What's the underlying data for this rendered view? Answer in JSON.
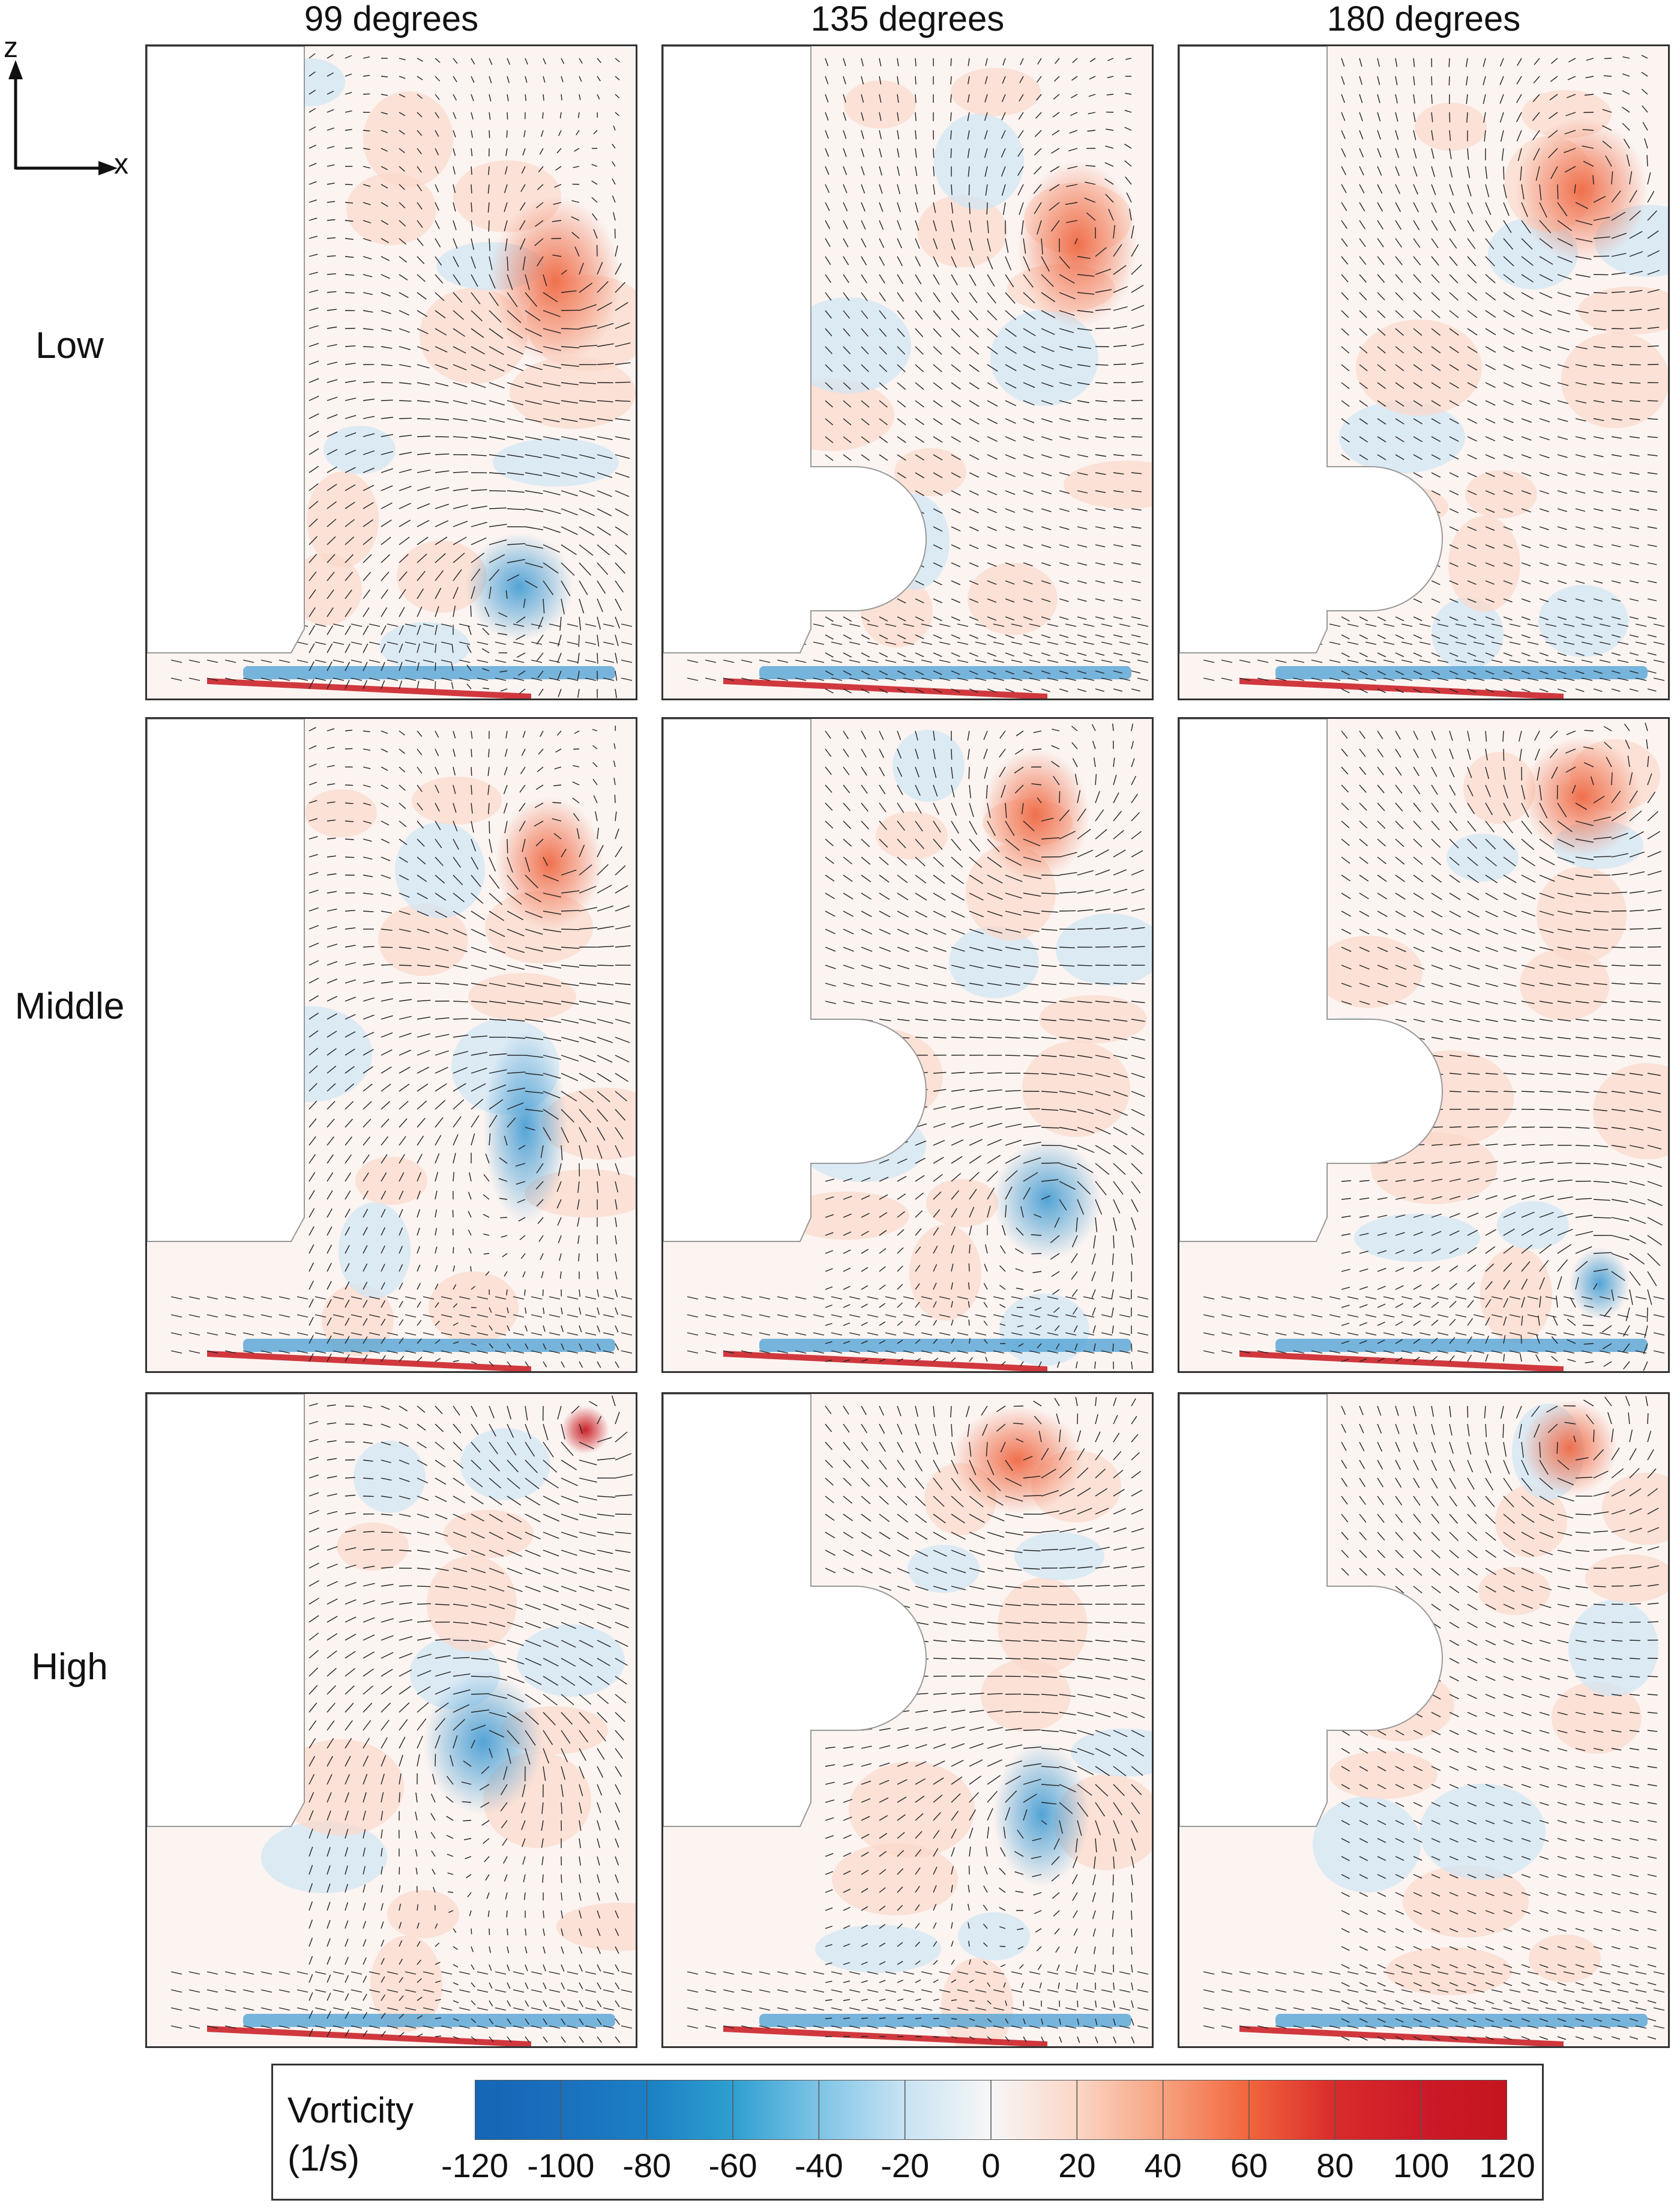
{
  "columns": [
    "99 degrees",
    "135 degrees",
    "180 degrees"
  ],
  "rows": [
    "Low",
    "Middle",
    "High"
  ],
  "axes": {
    "vertical": "z",
    "horizontal": "x"
  },
  "legend": {
    "title_line1": "Vorticity",
    "title_line2": "(1/s)",
    "ticks": [
      "-120",
      "-100",
      "-80",
      "-60",
      "-40",
      "-20",
      "0",
      "20",
      "40",
      "60",
      "80",
      "100",
      "120"
    ],
    "min": -120,
    "max": 120,
    "colors": [
      "#1565b5",
      "#1a6fbd",
      "#1b7fc4",
      "#2e9fd0",
      "#7ec4e6",
      "#c8e3f3",
      "#f7f7f7",
      "#fbd6c6",
      "#f7a27f",
      "#f1653d",
      "#d92b2b",
      "#cc1a28",
      "#c4151f"
    ]
  },
  "vortex_colors": {
    "positive": "#ef6a45",
    "negative": "#4a9fd4",
    "strong_positive": "#c8161e"
  }
}
